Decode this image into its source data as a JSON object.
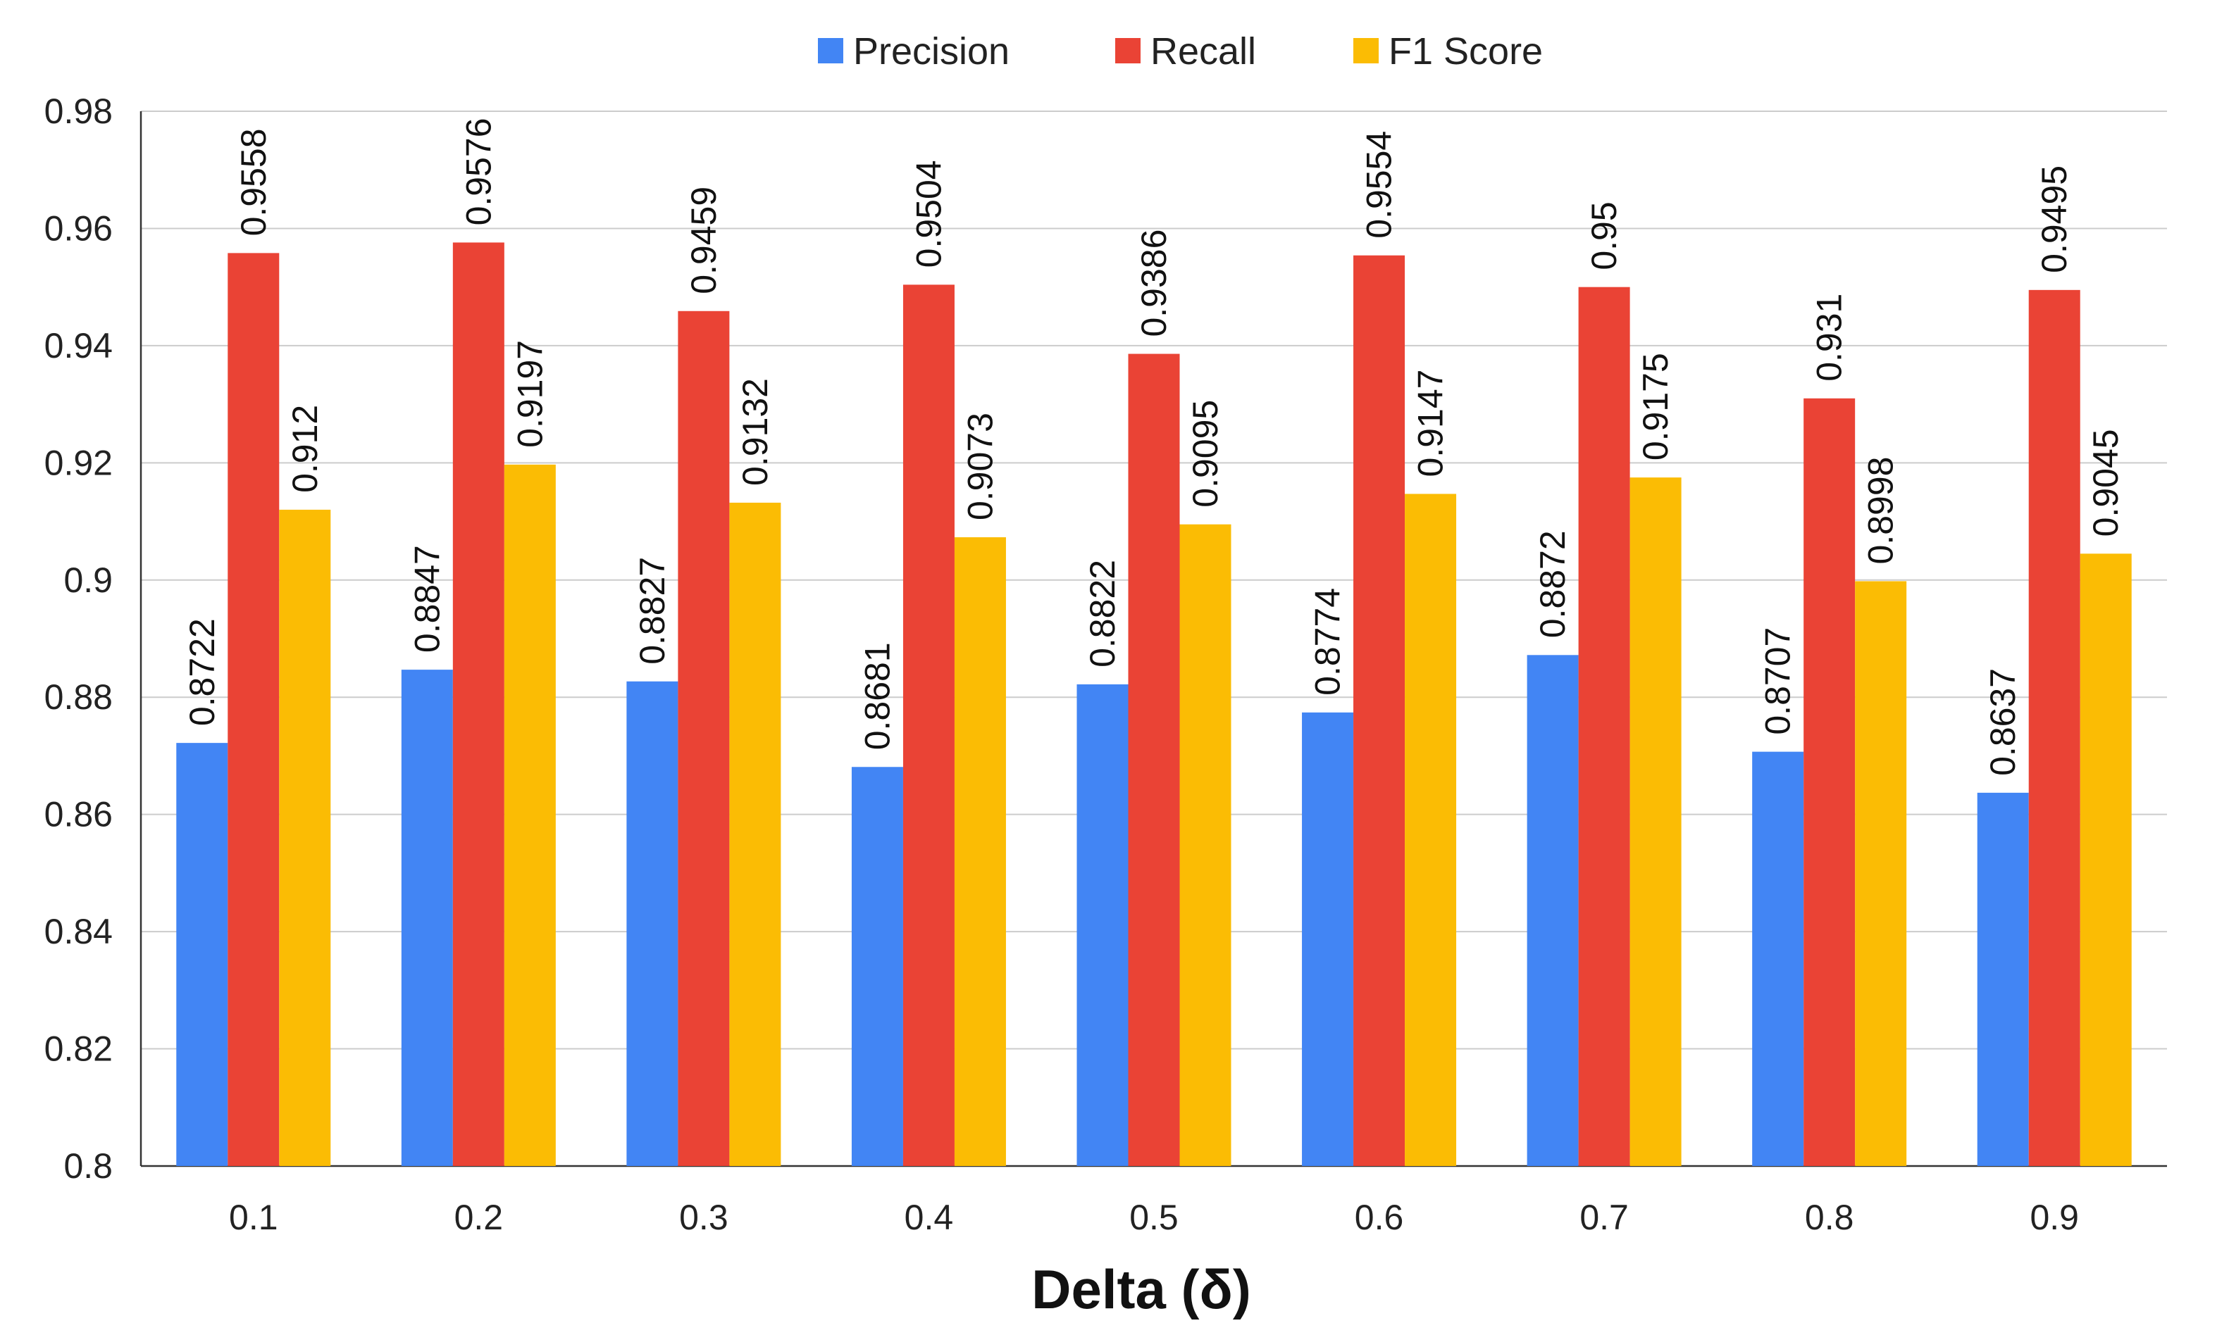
{
  "chart_data": {
    "type": "bar",
    "title": "",
    "xlabel": "Delta (δ)",
    "ylabel": "",
    "categories": [
      "0.1",
      "0.2",
      "0.3",
      "0.4",
      "0.5",
      "0.6",
      "0.7",
      "0.8",
      "0.9"
    ],
    "series": [
      {
        "name": "Precision",
        "color": "#4285F4",
        "values": [
          0.8722,
          0.8847,
          0.8827,
          0.8681,
          0.8822,
          0.8774,
          0.8872,
          0.8707,
          0.8637
        ],
        "labels": [
          "0.8722",
          "0.8847",
          "0.8827",
          "0.8681",
          "0.8822",
          "0.8774",
          "0.8872",
          "0.8707",
          "0.8637"
        ]
      },
      {
        "name": "Recall",
        "color": "#EA4335",
        "values": [
          0.9558,
          0.9576,
          0.9459,
          0.9504,
          0.9386,
          0.9554,
          0.95,
          0.931,
          0.9495
        ],
        "labels": [
          "0.9558",
          "0.9576",
          "0.9459",
          "0.9504",
          "0.9386",
          "0.9554",
          "0.95",
          "0.931",
          "0.9495"
        ]
      },
      {
        "name": "F1 Score",
        "color": "#FBBC04",
        "values": [
          0.912,
          0.9197,
          0.9132,
          0.9073,
          0.9095,
          0.9147,
          0.9175,
          0.8998,
          0.9045
        ],
        "labels": [
          "0.912",
          "0.9197",
          "0.9132",
          "0.9073",
          "0.9095",
          "0.9147",
          "0.9175",
          "0.8998",
          "0.9045"
        ]
      }
    ],
    "ylim": [
      0.8,
      0.98
    ],
    "yticks": [
      0.8,
      0.82,
      0.84,
      0.86,
      0.88,
      0.9,
      0.92,
      0.94,
      0.96,
      0.98
    ],
    "ytick_labels": [
      "0.8",
      "0.82",
      "0.84",
      "0.86",
      "0.88",
      "0.9",
      "0.92",
      "0.94",
      "0.96",
      "0.98"
    ],
    "grid": true,
    "legend_position": "top-center",
    "gridline_color": "#CCCCCC",
    "axis_color": "#333333"
  }
}
